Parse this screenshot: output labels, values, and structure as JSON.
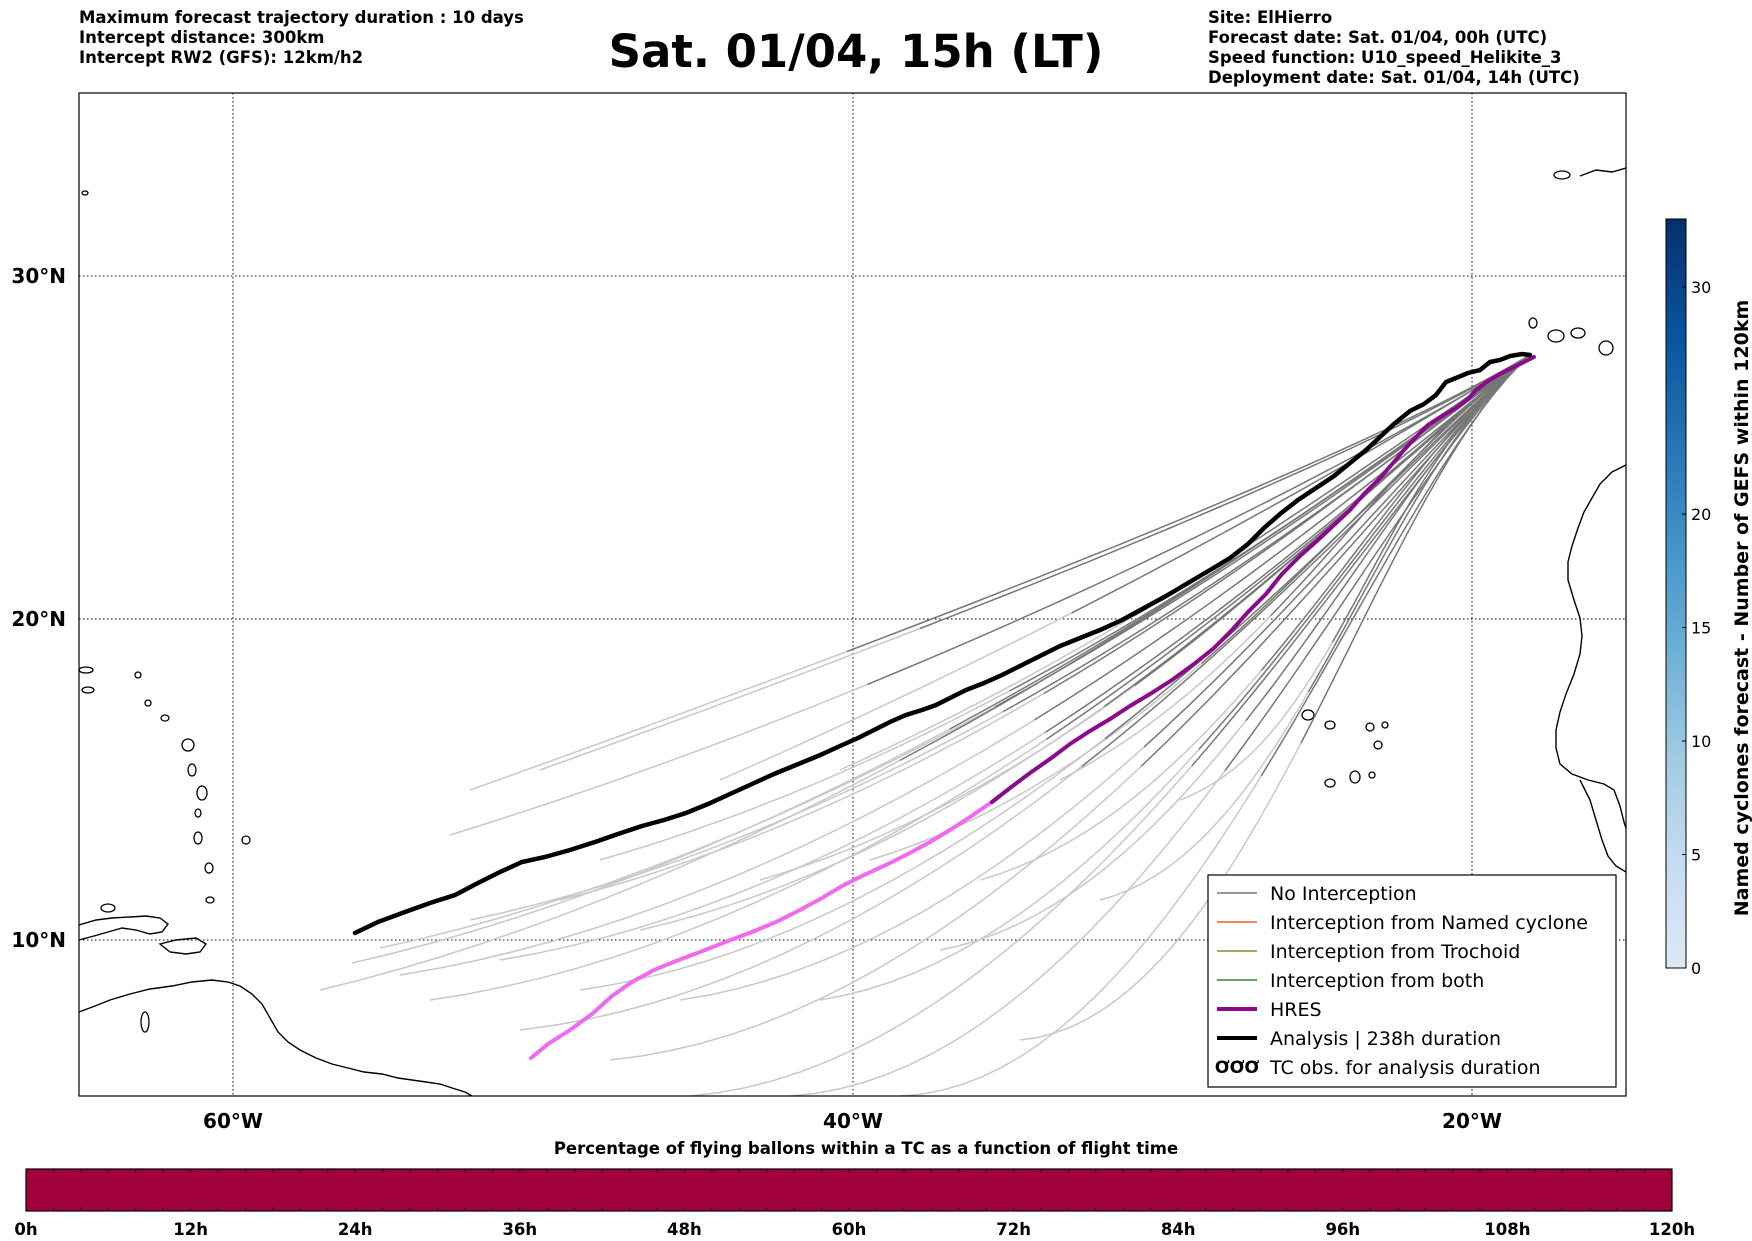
{
  "header": {
    "left_lines": [
      "Maximum forecast trajectory duration : 10 days",
      "Intercept distance: 300km",
      "Intercept RW2 (GFS):  12km/h2"
    ],
    "title": "Sat. 01/04, 15h (LT)",
    "right_lines": [
      "Site: ElHierro",
      "Forecast date: Sat. 01/04, 00h (UTC)",
      "Speed function: U10_speed_Helikite_3",
      "Deployment date: Sat. 01/04, 14h (UTC)"
    ]
  },
  "map": {
    "lon_ticks": [
      "60°W",
      "40°W",
      "20°W"
    ],
    "lat_ticks": [
      "30°N",
      "20°N",
      "10°N"
    ],
    "colors": {
      "no_interception": "#777777",
      "named_cyclone": "#e8602c",
      "trochoid": "#8a8a2a",
      "both": "#2e8b2e",
      "hres_over_ocean": "#8b0a8b",
      "hres_early": "#f06af0",
      "analysis": "#000000",
      "ensemble_light": "#c8c8c8",
      "coastline": "#000000"
    }
  },
  "legend": {
    "items": [
      {
        "label": "No Interception",
        "style": "thin",
        "color": "#777777"
      },
      {
        "label": "Interception from Named cyclone",
        "style": "thin",
        "color": "#e8602c"
      },
      {
        "label": "Interception from Trochoid",
        "style": "thin",
        "color": "#8a8a2a"
      },
      {
        "label": "Interception from both",
        "style": "thin",
        "color": "#2e8b2e"
      },
      {
        "label": "HRES",
        "style": "thick",
        "color": "#8b0a8b"
      },
      {
        "label": "Analysis | 238h duration",
        "style": "thick",
        "color": "#000000"
      },
      {
        "label": "TC obs. for analysis duration",
        "style": "symbol",
        "color": "#000000"
      }
    ]
  },
  "colorbar_right": {
    "label": "Named cyclones forecast - Number of GEFS within 120km",
    "ticks": [
      "0",
      "5",
      "10",
      "15",
      "20",
      "30"
    ],
    "colors": [
      "#dce9f6",
      "#c6dbef",
      "#9ecae1",
      "#6baed6",
      "#4292c6",
      "#2171b5",
      "#08519c",
      "#08306b"
    ]
  },
  "bottom_bar": {
    "title": "Percentage of flying ballons within a TC as a function of flight time",
    "ticks": [
      "0h",
      "12h",
      "24h",
      "36h",
      "48h",
      "60h",
      "72h",
      "84h",
      "96h",
      "108h",
      "120h"
    ],
    "fill_color": "#a0003c"
  }
}
